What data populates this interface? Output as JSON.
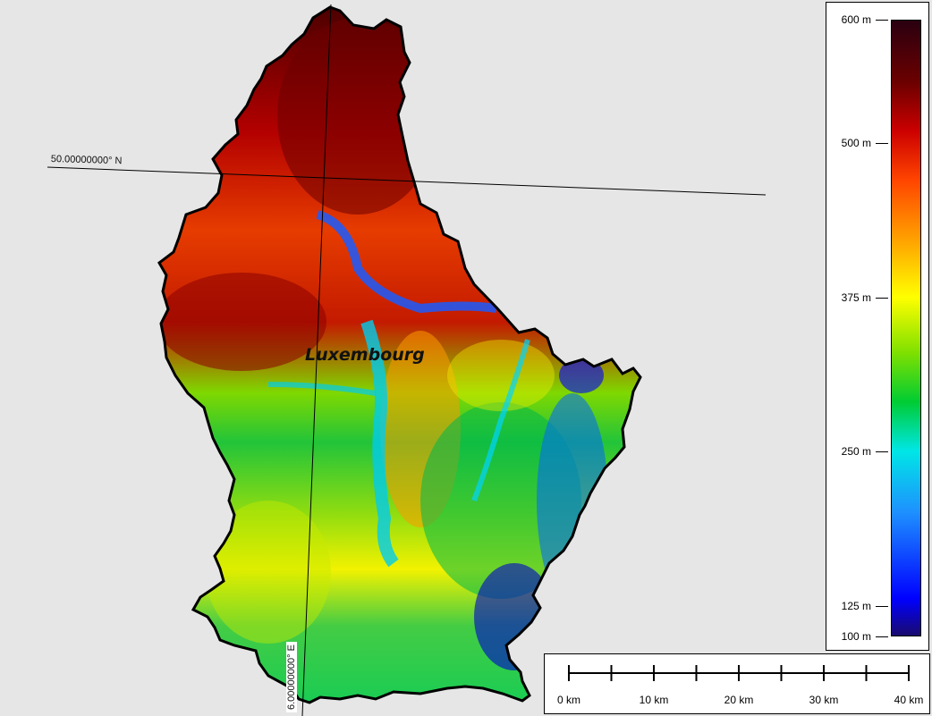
{
  "map": {
    "place_label": "Luxembourg",
    "latitude_label": "50.00000000° N",
    "longitude_label": "6.00000000° E",
    "background_color": "#e6e6e6",
    "border_color": "#000000"
  },
  "legend": {
    "unit": "m",
    "min": 100,
    "max": 600,
    "ticks": [
      {
        "value": 600,
        "label": "600 m"
      },
      {
        "value": 500,
        "label": "500 m"
      },
      {
        "value": 375,
        "label": "375 m"
      },
      {
        "value": 250,
        "label": "250 m"
      },
      {
        "value": 125,
        "label": "125 m"
      },
      {
        "value": 100,
        "label": "100 m"
      }
    ],
    "color_stops": [
      {
        "value": 100,
        "color": "#1a0a6e"
      },
      {
        "value": 130,
        "color": "#0000ff"
      },
      {
        "value": 200,
        "color": "#1e90ff"
      },
      {
        "value": 250,
        "color": "#00e6e6"
      },
      {
        "value": 290,
        "color": "#00cc33"
      },
      {
        "value": 330,
        "color": "#7fe000"
      },
      {
        "value": 375,
        "color": "#ffff00"
      },
      {
        "value": 420,
        "color": "#ffa500"
      },
      {
        "value": 470,
        "color": "#ff4500"
      },
      {
        "value": 510,
        "color": "#cc0000"
      },
      {
        "value": 550,
        "color": "#6b0000"
      },
      {
        "value": 600,
        "color": "#2a0010"
      }
    ]
  },
  "scale_bar": {
    "labels": [
      "0 km",
      "10 km",
      "20 km",
      "30 km",
      "40 km"
    ],
    "max_km": 40,
    "minor_step_km": 5
  }
}
